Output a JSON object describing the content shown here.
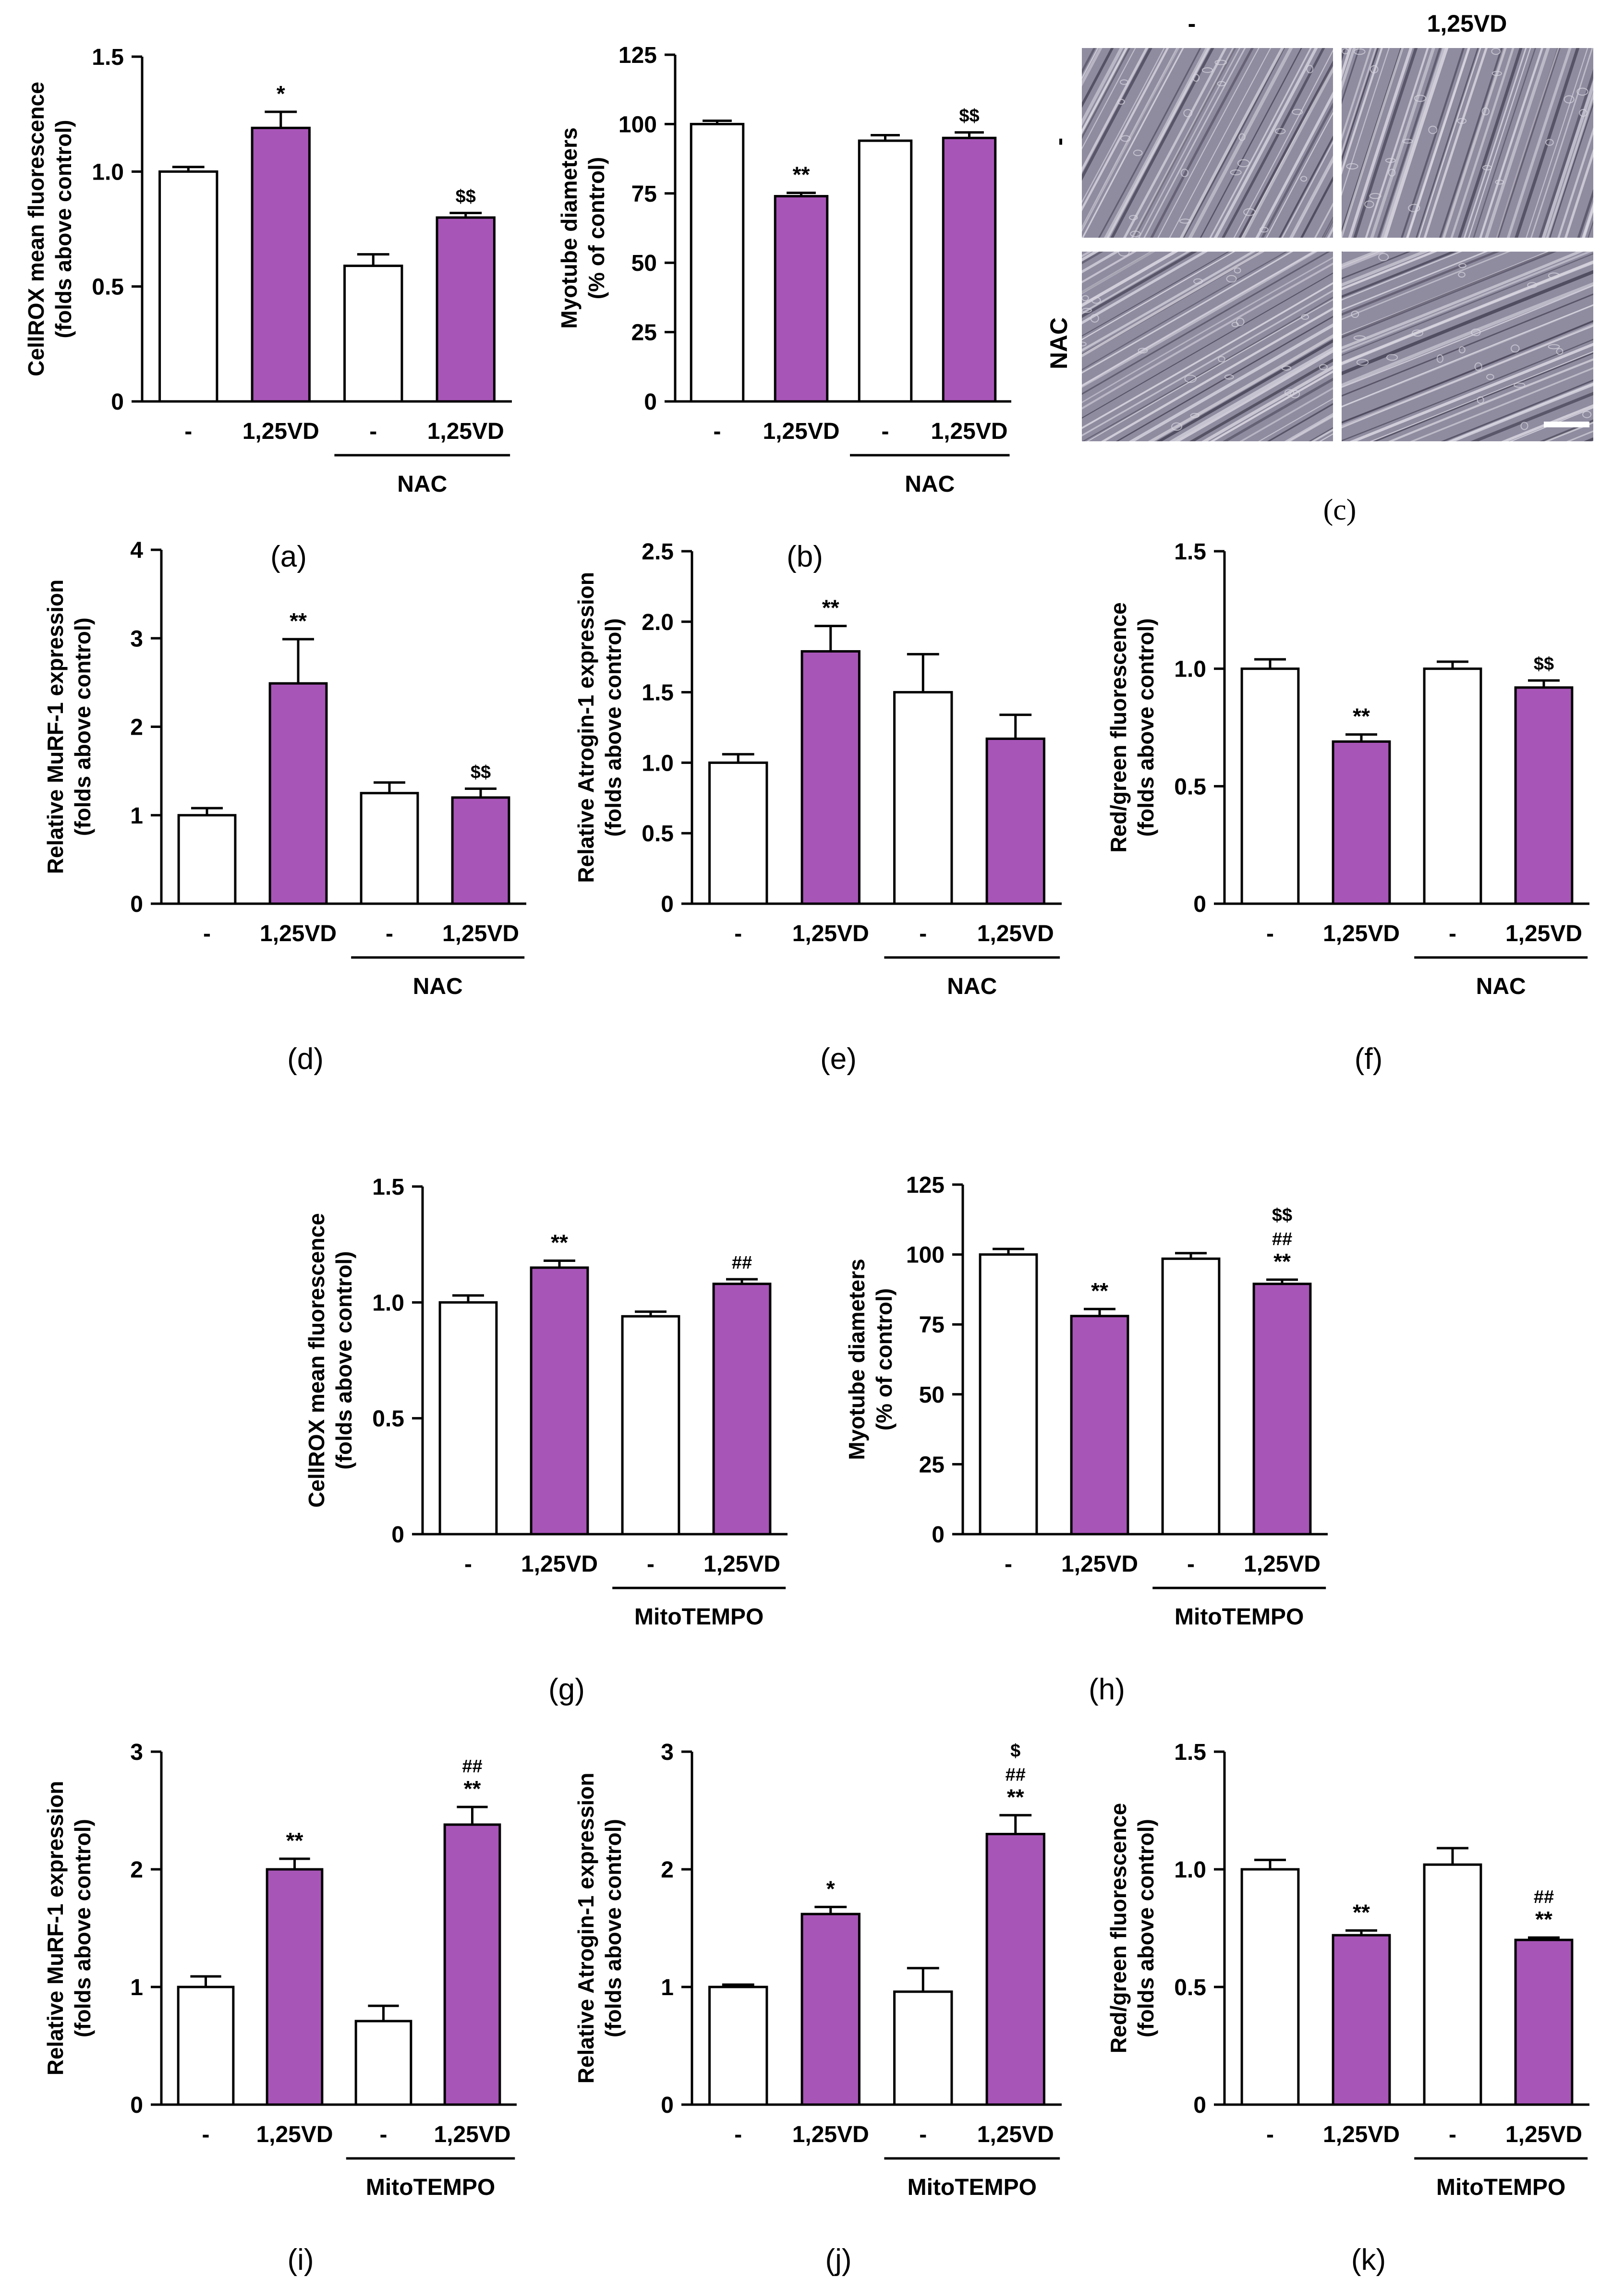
{
  "colors": {
    "control_fill": "#ffffff",
    "treated_fill": "#a855b8",
    "stroke": "#000000",
    "photo_bg": "#8f8ca0",
    "fiber": "#d9d6e0",
    "fiber_dark": "#4a4659"
  },
  "images": {
    "c": {
      "label": "(c)",
      "col_headers": [
        "-",
        "1,25VD"
      ],
      "row_headers": [
        "-",
        "NAC"
      ],
      "description": "phase-contrast micrographs of myotubes",
      "scale_bar_icon": "scale-bar"
    }
  },
  "chart_data": [
    {
      "id": "a",
      "label": "(a)",
      "type": "bar",
      "title": "",
      "ylabel": "CellROX mean fluorescence",
      "ylabel2": "(folds above control)",
      "ylim": [
        0,
        1.5
      ],
      "yticks": [
        "0",
        "0.5",
        "1.0",
        "1.5"
      ],
      "ytick_values": [
        0,
        0.5,
        1.0,
        1.5
      ],
      "categories": [
        "-",
        "1,25VD",
        "-",
        "1,25VD"
      ],
      "group_label": "NAC",
      "values": [
        1.0,
        1.19,
        0.59,
        0.8
      ],
      "errors": [
        0.02,
        0.07,
        0.05,
        0.02
      ],
      "treated": [
        false,
        true,
        false,
        true
      ],
      "annotations": [
        "",
        "*",
        "",
        "$$"
      ]
    },
    {
      "id": "b",
      "label": "(b)",
      "type": "bar",
      "title": "",
      "ylabel": "Myotube diameters",
      "ylabel2": "(% of control)",
      "ylim": [
        0,
        125
      ],
      "yticks": [
        "0",
        "25",
        "50",
        "75",
        "100",
        "125"
      ],
      "ytick_values": [
        0,
        25,
        50,
        75,
        100,
        125
      ],
      "categories": [
        "-",
        "1,25VD",
        "-",
        "1,25VD"
      ],
      "group_label": "NAC",
      "values": [
        100,
        74,
        94,
        95
      ],
      "errors": [
        1.2,
        1.2,
        2,
        2
      ],
      "treated": [
        false,
        true,
        false,
        true
      ],
      "annotations": [
        "",
        "**",
        "",
        "$$"
      ]
    },
    {
      "id": "d",
      "label": "(d)",
      "type": "bar",
      "title": "",
      "ylabel": "Relative MuRF-1 expression",
      "ylabel2": "(folds above control)",
      "ylim": [
        0,
        4
      ],
      "yticks": [
        "0",
        "1",
        "2",
        "3",
        "4"
      ],
      "ytick_values": [
        0,
        1,
        2,
        3,
        4
      ],
      "categories": [
        "-",
        "1,25VD",
        "-",
        "1,25VD"
      ],
      "group_label": "NAC",
      "values": [
        1.0,
        2.49,
        1.25,
        1.2
      ],
      "errors": [
        0.08,
        0.5,
        0.12,
        0.1
      ],
      "treated": [
        false,
        true,
        false,
        true
      ],
      "annotations": [
        "",
        "**",
        "",
        "$$"
      ]
    },
    {
      "id": "e",
      "label": "(e)",
      "type": "bar",
      "title": "",
      "ylabel": "Relative Atrogin-1 expression",
      "ylabel2": "(folds above control)",
      "ylim": [
        0,
        2.5
      ],
      "yticks": [
        "0",
        "0.5",
        "1.0",
        "1.5",
        "2.0",
        "2.5"
      ],
      "ytick_values": [
        0,
        0.5,
        1.0,
        1.5,
        2.0,
        2.5
      ],
      "categories": [
        "-",
        "1,25VD",
        "-",
        "1,25VD"
      ],
      "group_label": "NAC",
      "values": [
        1.0,
        1.79,
        1.5,
        1.17
      ],
      "errors": [
        0.06,
        0.18,
        0.27,
        0.17
      ],
      "treated": [
        false,
        true,
        false,
        true
      ],
      "annotations": [
        "",
        "**",
        "",
        ""
      ]
    },
    {
      "id": "f",
      "label": "(f)",
      "type": "bar",
      "title": "",
      "ylabel": "Red/green fluorescence",
      "ylabel2": "(folds above control)",
      "ylim": [
        0,
        1.5
      ],
      "yticks": [
        "0",
        "0.5",
        "1.0",
        "1.5"
      ],
      "ytick_values": [
        0,
        0.5,
        1.0,
        1.5
      ],
      "categories": [
        "-",
        "1,25VD",
        "-",
        "1,25VD"
      ],
      "group_label": "NAC",
      "values": [
        1.0,
        0.69,
        1.0,
        0.92
      ],
      "errors": [
        0.04,
        0.03,
        0.03,
        0.03
      ],
      "treated": [
        false,
        true,
        false,
        true
      ],
      "annotations": [
        "",
        "**",
        "",
        "$$"
      ]
    },
    {
      "id": "g",
      "label": "(g)",
      "type": "bar",
      "title": "",
      "ylabel": "CellROX mean fluorescence",
      "ylabel2": "(folds above control)",
      "ylim": [
        0,
        1.5
      ],
      "yticks": [
        "0",
        "0.5",
        "1.0",
        "1.5"
      ],
      "ytick_values": [
        0,
        0.5,
        1.0,
        1.5
      ],
      "categories": [
        "-",
        "1,25VD",
        "-",
        "1,25VD"
      ],
      "group_label": "MitoTEMPO",
      "values": [
        1.0,
        1.15,
        0.94,
        1.08
      ],
      "errors": [
        0.03,
        0.03,
        0.02,
        0.02
      ],
      "treated": [
        false,
        true,
        false,
        true
      ],
      "annotations": [
        "",
        "**",
        "",
        "##"
      ]
    },
    {
      "id": "h",
      "label": "(h)",
      "type": "bar",
      "title": "",
      "ylabel": "Myotube diameters",
      "ylabel2": "(% of control)",
      "ylim": [
        0,
        125
      ],
      "yticks": [
        "0",
        "25",
        "50",
        "75",
        "100",
        "125"
      ],
      "ytick_values": [
        0,
        25,
        50,
        75,
        100,
        125
      ],
      "categories": [
        "-",
        "1,25VD",
        "-",
        "1,25VD"
      ],
      "group_label": "MitoTEMPO",
      "values": [
        100,
        78,
        98.5,
        89.5
      ],
      "errors": [
        2,
        2.5,
        2,
        1.5
      ],
      "treated": [
        false,
        true,
        false,
        true
      ],
      "annotations": [
        "",
        "**",
        "",
        "$$\n##\n**"
      ]
    },
    {
      "id": "i",
      "label": "(i)",
      "type": "bar",
      "title": "",
      "ylabel": "Relative MuRF-1 expression",
      "ylabel2": "(folds above control)",
      "ylim": [
        0,
        3
      ],
      "yticks": [
        "0",
        "1",
        "2",
        "3"
      ],
      "ytick_values": [
        0,
        1,
        2,
        3
      ],
      "categories": [
        "-",
        "1,25VD",
        "-",
        "1,25VD"
      ],
      "group_label": "MitoTEMPO",
      "values": [
        1.0,
        2.0,
        0.71,
        2.38
      ],
      "errors": [
        0.09,
        0.09,
        0.13,
        0.15
      ],
      "treated": [
        false,
        true,
        false,
        true
      ],
      "annotations": [
        "",
        "**",
        "",
        "##\n**"
      ]
    },
    {
      "id": "j",
      "label": "(j)",
      "type": "bar",
      "title": "",
      "ylabel": "Relative Atrogin-1 expression",
      "ylabel2": "(folds above control)",
      "ylim": [
        0,
        3
      ],
      "yticks": [
        "0",
        "1",
        "2",
        "3"
      ],
      "ytick_values": [
        0,
        1,
        2,
        3
      ],
      "categories": [
        "-",
        "1,25VD",
        "-",
        "1,25VD"
      ],
      "group_label": "MitoTEMPO",
      "values": [
        1.0,
        1.62,
        0.96,
        2.3
      ],
      "errors": [
        0.02,
        0.06,
        0.2,
        0.16
      ],
      "treated": [
        false,
        true,
        false,
        true
      ],
      "annotations": [
        "",
        "*",
        "",
        "$\n##\n**"
      ]
    },
    {
      "id": "k",
      "label": "(k)",
      "type": "bar",
      "title": "",
      "ylabel": "Red/green fluorescence",
      "ylabel2": "(folds above control)",
      "ylim": [
        0,
        1.5
      ],
      "yticks": [
        "0",
        "0.5",
        "1.0",
        "1.5"
      ],
      "ytick_values": [
        0,
        0.5,
        1.0,
        1.5
      ],
      "categories": [
        "-",
        "1,25VD",
        "-",
        "1,25VD"
      ],
      "group_label": "MitoTEMPO",
      "values": [
        1.0,
        0.72,
        1.02,
        0.7
      ],
      "errors": [
        0.04,
        0.02,
        0.07,
        0.01
      ],
      "treated": [
        false,
        true,
        false,
        true
      ],
      "annotations": [
        "",
        "**",
        "",
        "##\n**"
      ]
    }
  ]
}
